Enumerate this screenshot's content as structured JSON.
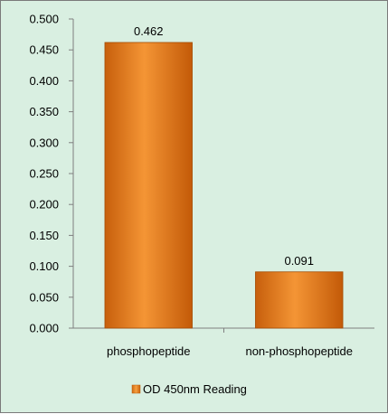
{
  "chart_data": {
    "type": "bar",
    "categories": [
      "phosphopeptide",
      "non-phosphopeptide"
    ],
    "series": [
      {
        "name": "OD 450nm Reading",
        "values": [
          0.462,
          0.091
        ]
      }
    ],
    "data_labels": [
      "0.462",
      "0.091"
    ],
    "ylim": [
      0,
      0.5
    ],
    "yticks": [
      "0.000",
      "0.050",
      "0.100",
      "0.150",
      "0.200",
      "0.250",
      "0.300",
      "0.350",
      "0.400",
      "0.450",
      "0.500"
    ],
    "grid": false,
    "legend_position": "bottom",
    "colors": {
      "bar": "#f08a1c",
      "background": "#d9efe1"
    }
  }
}
